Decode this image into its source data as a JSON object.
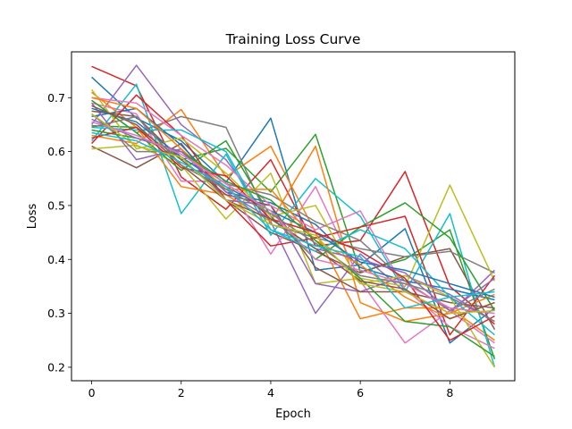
{
  "chart_data": {
    "type": "line",
    "title": "Training Loss Curve",
    "xlabel": "Epoch",
    "ylabel": "Loss",
    "xlim": [
      -0.45,
      9.45
    ],
    "ylim": [
      0.175,
      0.785
    ],
    "xticks": [
      0,
      2,
      4,
      6,
      8
    ],
    "yticks": [
      0.2,
      0.3,
      0.4,
      0.5,
      0.6,
      0.7
    ],
    "ytick_labels": [
      "0.2",
      "0.3",
      "0.4",
      "0.5",
      "0.6",
      "0.7"
    ],
    "grid": false,
    "legend": false,
    "x": [
      0,
      1,
      2,
      3,
      4,
      5,
      6,
      7,
      8,
      9
    ],
    "series": [
      {
        "color": "#1f77b4",
        "values": [
          0.738,
          0.662,
          0.62,
          0.543,
          0.662,
          0.38,
          0.39,
          0.457,
          0.245,
          0.31
        ]
      },
      {
        "color": "#ff7f0e",
        "values": [
          0.63,
          0.615,
          0.678,
          0.553,
          0.61,
          0.45,
          0.29,
          0.31,
          0.31,
          0.25
        ]
      },
      {
        "color": "#2ca02c",
        "values": [
          0.648,
          0.645,
          0.585,
          0.606,
          0.525,
          0.632,
          0.377,
          0.4,
          0.455,
          0.215
        ]
      },
      {
        "color": "#d62728",
        "values": [
          0.758,
          0.722,
          0.553,
          0.493,
          0.585,
          0.425,
          0.435,
          0.563,
          0.35,
          0.28
        ]
      },
      {
        "color": "#9467bd",
        "values": [
          0.65,
          0.76,
          0.65,
          0.585,
          0.47,
          0.3,
          0.41,
          0.34,
          0.3,
          0.38
        ]
      },
      {
        "color": "#8c564b",
        "values": [
          0.61,
          0.57,
          0.615,
          0.51,
          0.45,
          0.415,
          0.375,
          0.405,
          0.42,
          0.27
        ]
      },
      {
        "color": "#e377c2",
        "values": [
          0.69,
          0.67,
          0.545,
          0.545,
          0.41,
          0.535,
          0.36,
          0.245,
          0.305,
          0.245
        ]
      },
      {
        "color": "#7f7f7f",
        "values": [
          0.695,
          0.635,
          0.665,
          0.645,
          0.465,
          0.44,
          0.42,
          0.405,
          0.415,
          0.375
        ]
      },
      {
        "color": "#bcbd22",
        "values": [
          0.605,
          0.612,
          0.575,
          0.475,
          0.56,
          0.355,
          0.365,
          0.35,
          0.538,
          0.36
        ]
      },
      {
        "color": "#17becf",
        "values": [
          0.62,
          0.725,
          0.485,
          0.595,
          0.445,
          0.55,
          0.48,
          0.34,
          0.485,
          0.2
        ]
      },
      {
        "color": "#1f77b4",
        "values": [
          0.665,
          0.68,
          0.612,
          0.525,
          0.505,
          0.465,
          0.385,
          0.36,
          0.345,
          0.325
        ]
      },
      {
        "color": "#ff7f0e",
        "values": [
          0.71,
          0.645,
          0.535,
          0.52,
          0.47,
          0.61,
          0.32,
          0.285,
          0.3,
          0.335
        ]
      },
      {
        "color": "#2ca02c",
        "values": [
          0.695,
          0.635,
          0.565,
          0.62,
          0.48,
          0.4,
          0.46,
          0.505,
          0.44,
          0.305
        ]
      },
      {
        "color": "#d62728",
        "values": [
          0.615,
          0.705,
          0.63,
          0.51,
          0.425,
          0.44,
          0.46,
          0.48,
          0.26,
          0.37
        ]
      },
      {
        "color": "#9467bd",
        "values": [
          0.69,
          0.585,
          0.605,
          0.51,
          0.5,
          0.355,
          0.34,
          0.37,
          0.335,
          0.285
        ]
      },
      {
        "color": "#8c564b",
        "values": [
          0.675,
          0.665,
          0.585,
          0.52,
          0.5,
          0.385,
          0.34,
          0.34,
          0.32,
          0.31
        ]
      },
      {
        "color": "#e377c2",
        "values": [
          0.7,
          0.69,
          0.63,
          0.575,
          0.5,
          0.455,
          0.49,
          0.345,
          0.275,
          0.235
        ]
      },
      {
        "color": "#7f7f7f",
        "values": [
          0.67,
          0.6,
          0.6,
          0.54,
          0.52,
          0.47,
          0.435,
          0.36,
          0.305,
          0.345
        ]
      },
      {
        "color": "#bcbd22",
        "values": [
          0.715,
          0.605,
          0.625,
          0.56,
          0.48,
          0.5,
          0.355,
          0.37,
          0.33,
          0.2
        ]
      },
      {
        "color": "#17becf",
        "values": [
          0.645,
          0.64,
          0.64,
          0.6,
          0.455,
          0.415,
          0.455,
          0.42,
          0.33,
          0.26
        ]
      },
      {
        "color": "#1f77b4",
        "values": [
          0.68,
          0.655,
          0.59,
          0.535,
          0.49,
          0.45,
          0.395,
          0.38,
          0.355,
          0.33
        ]
      },
      {
        "color": "#ff7f0e",
        "values": [
          0.7,
          0.68,
          0.605,
          0.53,
          0.53,
          0.435,
          0.39,
          0.33,
          0.29,
          0.32
        ]
      },
      {
        "color": "#2ca02c",
        "values": [
          0.64,
          0.625,
          0.6,
          0.545,
          0.51,
          0.435,
          0.365,
          0.285,
          0.275,
          0.22
        ]
      },
      {
        "color": "#d62728",
        "values": [
          0.625,
          0.645,
          0.57,
          0.555,
          0.475,
          0.45,
          0.415,
          0.365,
          0.25,
          0.295
        ]
      },
      {
        "color": "#9467bd",
        "values": [
          0.66,
          0.625,
          0.6,
          0.525,
          0.475,
          0.42,
          0.4,
          0.375,
          0.305,
          0.365
        ]
      },
      {
        "color": "#8c564b",
        "values": [
          0.685,
          0.65,
          0.575,
          0.51,
          0.475,
          0.42,
          0.36,
          0.345,
          0.29,
          0.32
        ]
      },
      {
        "color": "#e377c2",
        "values": [
          0.655,
          0.63,
          0.595,
          0.54,
          0.49,
          0.4,
          0.38,
          0.355,
          0.31,
          0.3
        ]
      },
      {
        "color": "#7f7f7f",
        "values": [
          0.645,
          0.665,
          0.575,
          0.53,
          0.485,
          0.43,
          0.37,
          0.355,
          0.33,
          0.285
        ]
      },
      {
        "color": "#bcbd22",
        "values": [
          0.67,
          0.61,
          0.59,
          0.51,
          0.465,
          0.445,
          0.355,
          0.34,
          0.3,
          0.305
        ]
      },
      {
        "color": "#17becf",
        "values": [
          0.635,
          0.62,
          0.58,
          0.535,
          0.455,
          0.425,
          0.405,
          0.31,
          0.33,
          0.34
        ]
      }
    ]
  }
}
